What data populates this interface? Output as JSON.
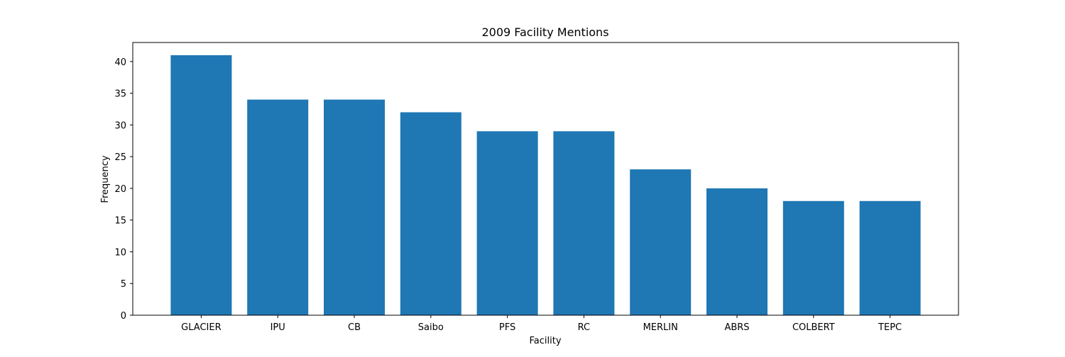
{
  "chart_data": {
    "type": "bar",
    "title": "2009 Facility Mentions",
    "xlabel": "Facility",
    "ylabel": "Frequency",
    "categories": [
      "GLACIER",
      "IPU",
      "CB",
      "Saibo",
      "PFS",
      "RC",
      "MERLIN",
      "ABRS",
      "COLBERT",
      "TEPC"
    ],
    "values": [
      41,
      34,
      34,
      32,
      29,
      29,
      23,
      20,
      18,
      18
    ],
    "ylim": [
      0,
      43
    ],
    "yticks": [
      0,
      5,
      10,
      15,
      20,
      25,
      30,
      35,
      40
    ],
    "grid": false,
    "bar_color": "#1f77b4"
  }
}
